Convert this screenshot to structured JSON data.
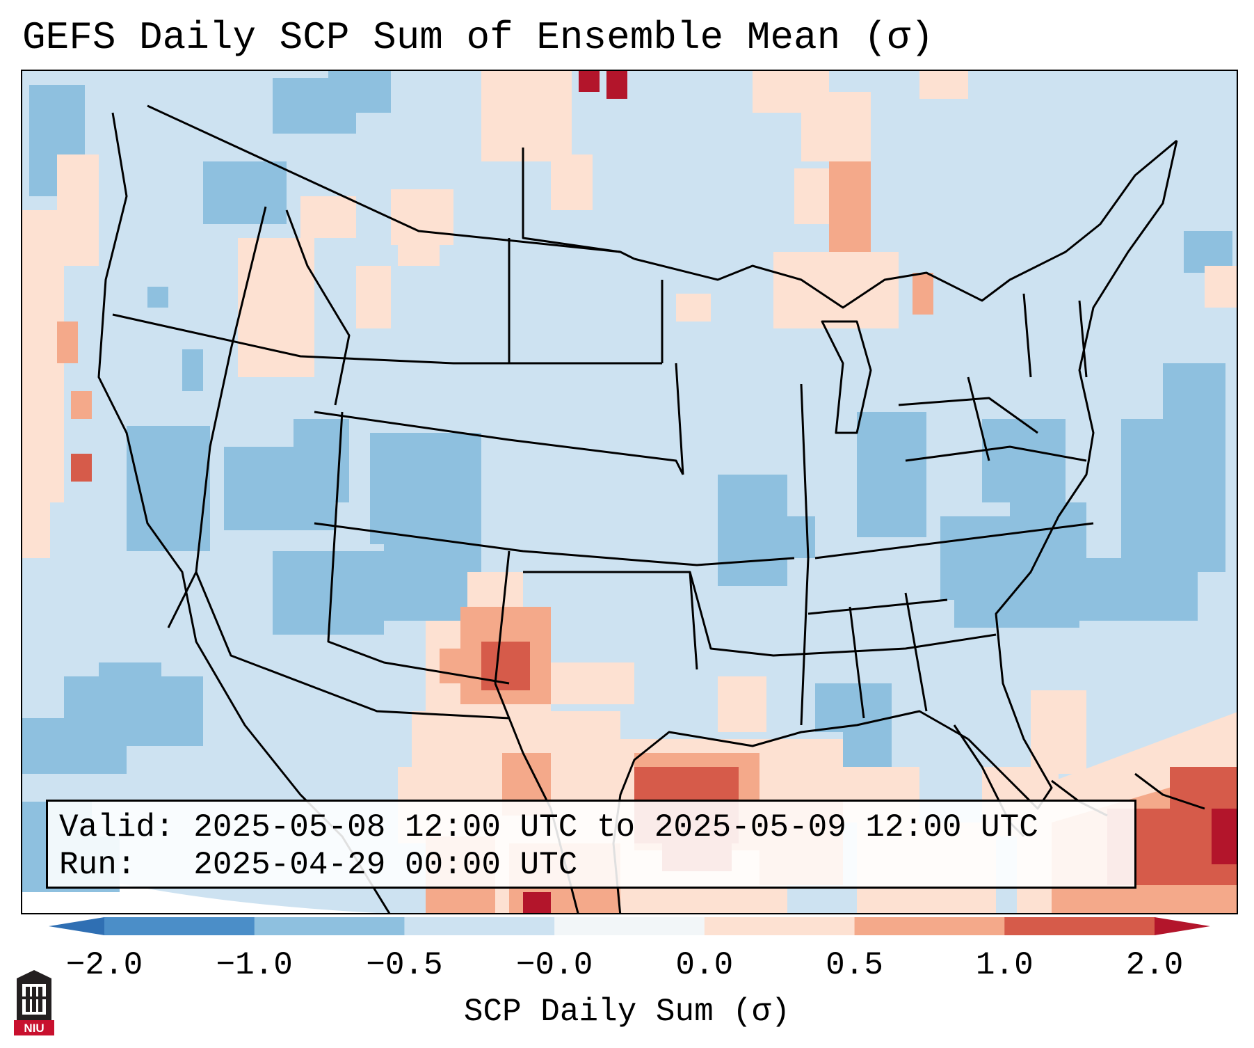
{
  "title": "GEFS Daily SCP Sum of Ensemble Mean (σ)",
  "info": {
    "valid_label": "Valid:",
    "valid_value": "2025-05-08 12:00 UTC to 2025-05-09 12:00 UTC",
    "run_label": "Run:",
    "run_value": "2025-04-29 00:00 UTC"
  },
  "colorbar": {
    "label": "SCP Daily Sum (σ)",
    "ticks": [
      "−2.0",
      "−1.0",
      "−0.5",
      "−0.0",
      "0.0",
      "0.5",
      "1.0",
      "2.0"
    ],
    "bin_colors": [
      "#4b8ec8",
      "#8ec0df",
      "#cde2f1",
      "#f2f6f8",
      "#fde1d2",
      "#f4a98a",
      "#d65b4a"
    ],
    "extend_low_color": "#2f6fb3",
    "extend_high_color": "#b3152b"
  },
  "logo": {
    "text": "NIU",
    "icon": "niu-tower-logo",
    "color": "#c8102e"
  }
}
